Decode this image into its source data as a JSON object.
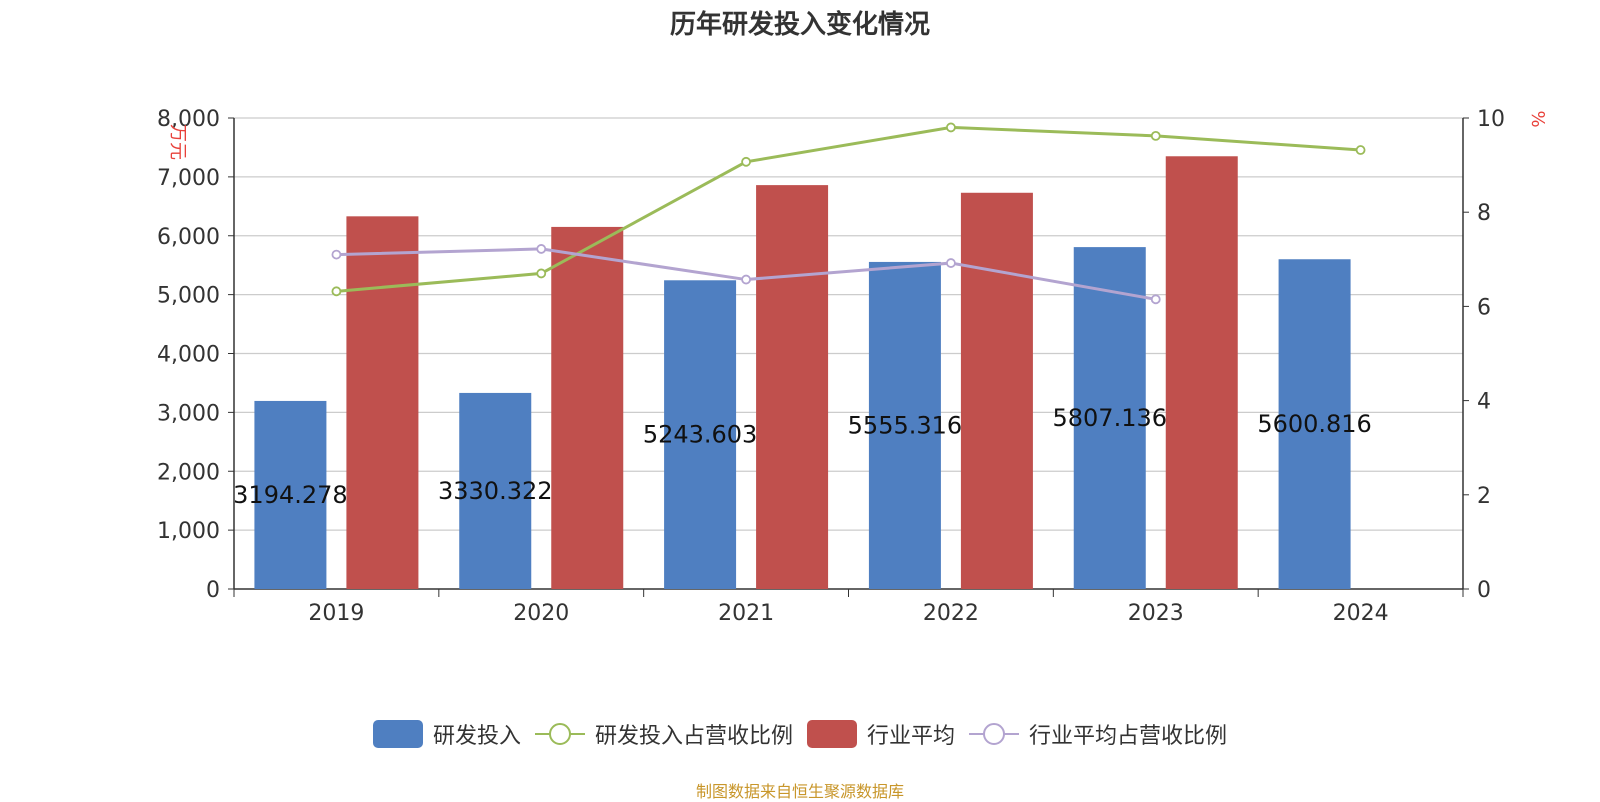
{
  "title": "历年研发投入变化情况",
  "footer": "制图数据来自恒生聚源数据库",
  "colors": {
    "rd": "#4f7fc1",
    "industry": "#c0504d",
    "rd_pct": "#9bbb59",
    "ind_pct": "#b3a4d0",
    "unit": "#e8413a"
  },
  "chart_data": {
    "type": "bar",
    "title": "历年研发投入变化情况",
    "categories": [
      "2019",
      "2020",
      "2021",
      "2022",
      "2023",
      "2024"
    ],
    "y_left": {
      "label": "万元",
      "min": 0,
      "max": 8000,
      "ticks": [
        "0",
        "1,000",
        "2,000",
        "3,000",
        "4,000",
        "5,000",
        "6,000",
        "7,000",
        "8,000"
      ]
    },
    "y_right": {
      "label": "%",
      "min": 0,
      "max": 10,
      "ticks": [
        "0",
        "2",
        "4",
        "6",
        "8",
        "10"
      ]
    },
    "grid": true,
    "legend_position": "bottom",
    "series": [
      {
        "name": "研发投入",
        "type": "bar",
        "axis": "left",
        "values": [
          3194.278,
          3330.322,
          5243.603,
          5555.316,
          5807.136,
          5600.816
        ],
        "labels": [
          "3194.278",
          "3330.322",
          "5243.603",
          "5555.316",
          "5807.136",
          "5600.816"
        ]
      },
      {
        "name": "研发投入占营收比例",
        "type": "line",
        "axis": "right",
        "values": [
          6.32,
          6.7,
          9.07,
          9.8,
          9.62,
          9.32
        ]
      },
      {
        "name": "行业平均",
        "type": "bar",
        "axis": "left",
        "values": [
          6330,
          6150,
          6860,
          6730,
          7350,
          null
        ]
      },
      {
        "name": "行业平均占营收比例",
        "type": "line",
        "axis": "right",
        "values": [
          7.1,
          7.22,
          6.57,
          6.92,
          6.15,
          null
        ]
      }
    ]
  }
}
